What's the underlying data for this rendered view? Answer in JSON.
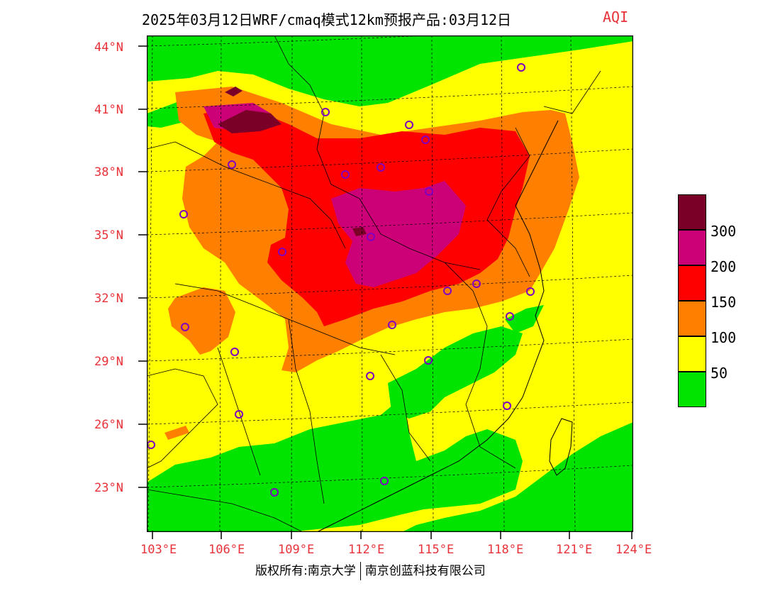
{
  "header": {
    "title": "2025年03月12日WRF/cmaq模式12km预报产品:03月12日",
    "variable": "AQI"
  },
  "axes": {
    "lat_labels": [
      "44°N",
      "41°N",
      "38°N",
      "35°N",
      "32°N",
      "29°N",
      "26°N",
      "23°N"
    ],
    "lon_labels": [
      "103°E",
      "106°E",
      "109°E",
      "112°E",
      "115°E",
      "118°E",
      "121°E",
      "124°E"
    ]
  },
  "legend": {
    "labels": [
      "300",
      "200",
      "150",
      "100",
      "50"
    ],
    "colors": [
      "#7a0028",
      "#cc0077",
      "#ff0000",
      "#ff7f00",
      "#ffff00",
      "#00e400"
    ]
  },
  "footer": {
    "left": "版权所有:南京大学",
    "right": "南京创蓝科技有限公司"
  },
  "colors": {
    "good": "#00e400",
    "moderate": "#ffff00",
    "usg": "#ff7f00",
    "unhealthy": "#ff0000",
    "very_unhealthy": "#cc0077",
    "hazardous": "#7a0028",
    "station_marker": "#8000c0",
    "label_red": "#e8323a"
  }
}
